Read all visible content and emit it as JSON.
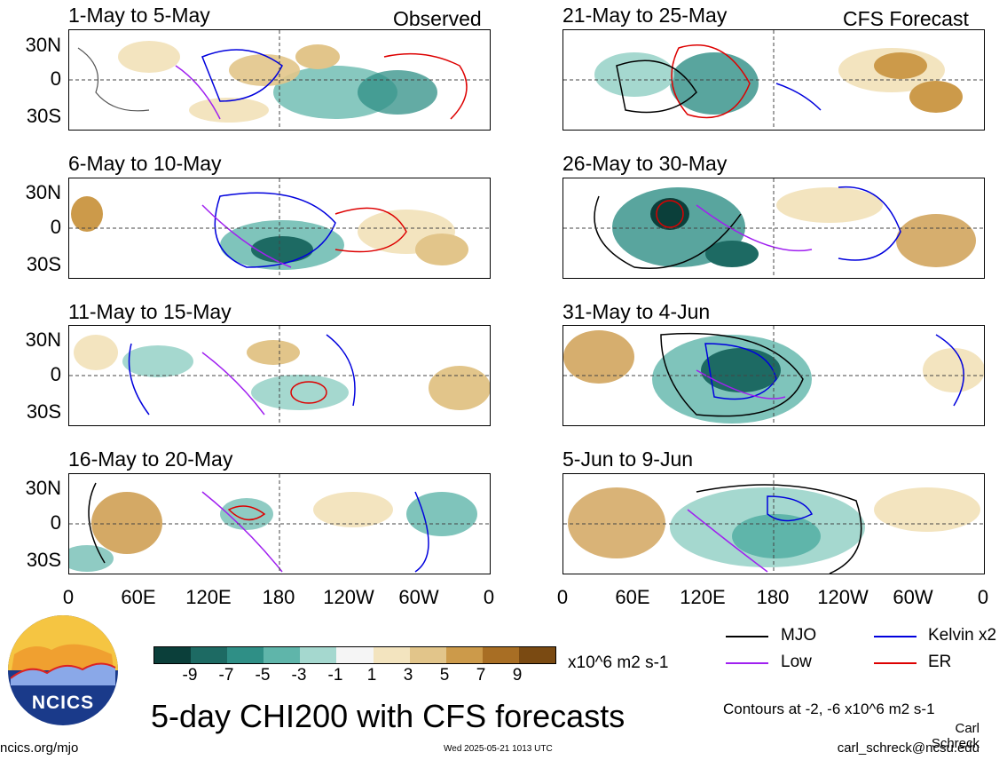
{
  "left_column_note": "Observed",
  "right_column_note": "CFS Forecast",
  "panels": [
    {
      "title": "1-May to 5-May"
    },
    {
      "title": "6-May to 10-May"
    },
    {
      "title": "11-May to 15-May"
    },
    {
      "title": "16-May to 20-May"
    },
    {
      "title": "21-May to 25-May"
    },
    {
      "title": "26-May to 30-May"
    },
    {
      "title": "31-May to 4-Jun"
    },
    {
      "title": "5-Jun to 9-Jun"
    }
  ],
  "lat_labels": [
    "30N",
    "0",
    "30S"
  ],
  "lon_labels": [
    "0",
    "60E",
    "120E",
    "180",
    "120W",
    "60W",
    "0"
  ],
  "colorbar": {
    "ticks": [
      "-9",
      "-7",
      "-5",
      "-3",
      "-1",
      "1",
      "3",
      "5",
      "7",
      "9"
    ],
    "units": "x10^6 m2 s-1",
    "colors": [
      "#0b3f3a",
      "#1d6a63",
      "#2f8f86",
      "#5fb5aa",
      "#a5d8cf",
      "#f5f5f5",
      "#f3e4bf",
      "#e2c58a",
      "#cc9a4a",
      "#a86e24",
      "#7a4a12"
    ]
  },
  "legend": [
    {
      "label": "MJO",
      "color": "#000000"
    },
    {
      "label": "Kelvin x2",
      "color": "#0000dd"
    },
    {
      "label": "Low",
      "color": "#a020f0"
    },
    {
      "label": "ER",
      "color": "#dd0000"
    }
  ],
  "logo_text": "NCICS",
  "main_title": "5-day CHI200 with CFS forecasts",
  "contour_note": "Contours at -2, -6 x10^6 m2 s-1",
  "author": "Carl Schreck",
  "website": "ncics.org/mjo",
  "timestamp": "Wed 2025-05-21 1013 UTC",
  "email": "carl_schreck@ncsu.edu"
}
